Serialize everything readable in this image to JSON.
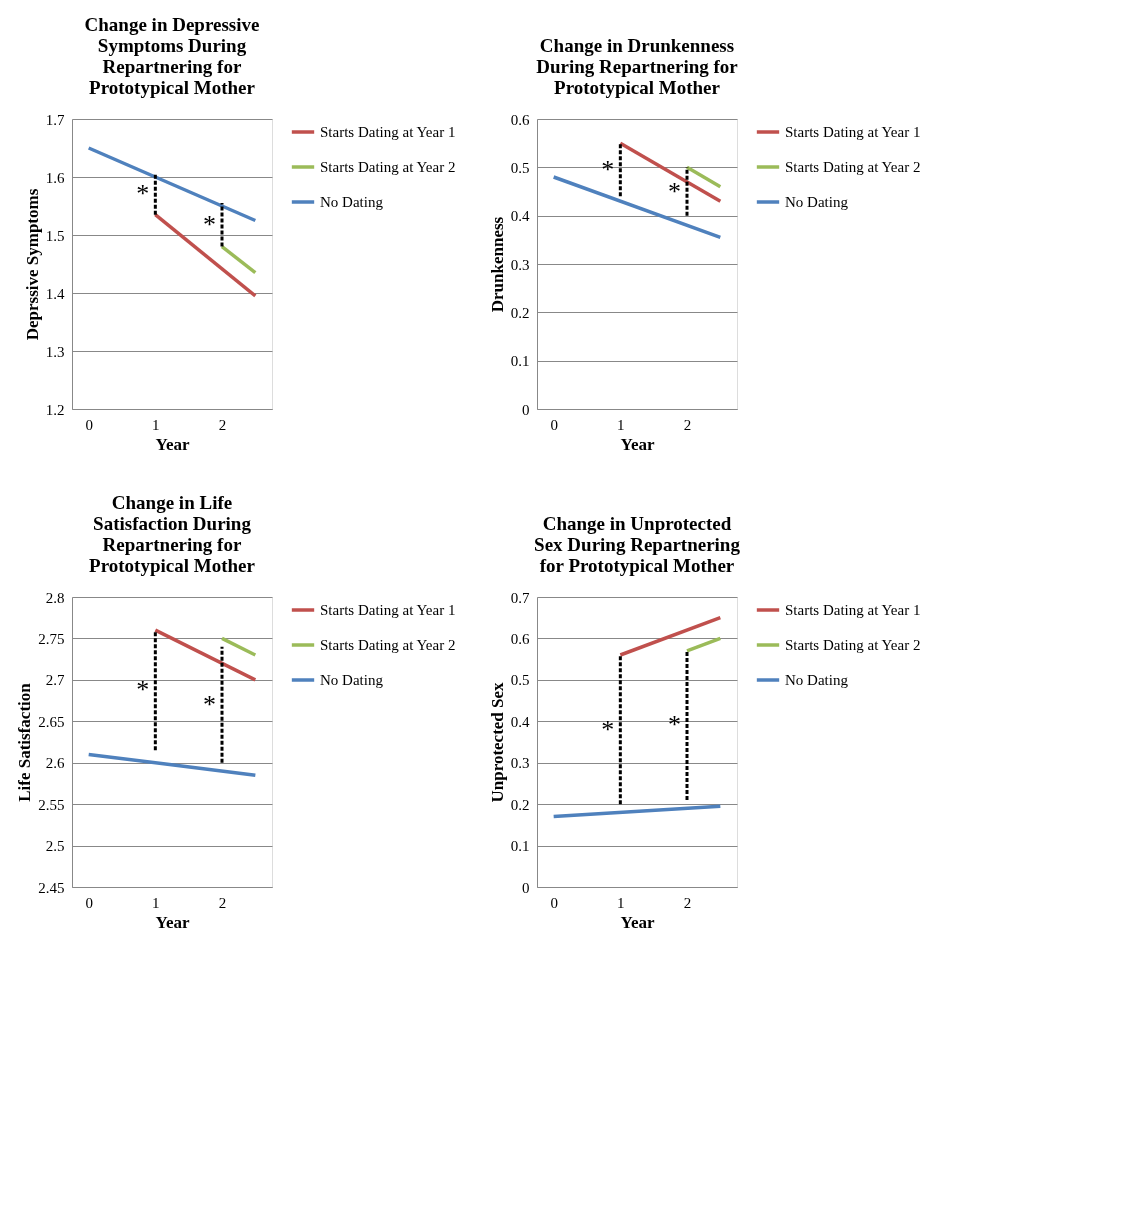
{
  "chart_data": [
    {
      "type": "line",
      "title": "Change in Depressive Symptoms During Repartnering for Prototypical Mother",
      "xlabel": "Year",
      "ylabel": "Deprssive Symptoms",
      "xlim": [
        -0.25,
        2.75
      ],
      "xticks": [
        0,
        1,
        2
      ],
      "ylim": [
        1.2,
        1.7
      ],
      "yticks": [
        1.2,
        1.3,
        1.4,
        1.5,
        1.6,
        1.7
      ],
      "grid": "y",
      "legend": "right",
      "marker": "none",
      "series": [
        {
          "name": "Starts Dating at Year 1",
          "color": "#c0504d",
          "x": [
            1,
            2.5
          ],
          "values": [
            1.535,
            1.395
          ]
        },
        {
          "name": "Starts Dating at Year 2",
          "color": "#9bbb59",
          "x": [
            2,
            2.5
          ],
          "values": [
            1.48,
            1.435
          ]
        },
        {
          "name": "No Dating",
          "color": "#4f81bd",
          "x": [
            0,
            2.5
          ],
          "values": [
            1.65,
            1.525
          ]
        },
        {
          "color": "#000000",
          "line_style": "dashed",
          "x": [
            1,
            1
          ],
          "values": [
            1.535,
            1.605
          ]
        },
        {
          "color": "#000000",
          "line_style": "dashed",
          "x": [
            2,
            2
          ],
          "values": [
            1.48,
            1.555
          ]
        }
      ],
      "annotations": [
        "*",
        "*"
      ]
    },
    {
      "type": "line",
      "title": "Change in Drunkenness During Repartnering for Prototypical Mother",
      "xlabel": "Year",
      "ylabel": "Drunkenness",
      "xlim": [
        -0.25,
        2.75
      ],
      "xticks": [
        0,
        1,
        2
      ],
      "ylim": [
        0,
        0.6
      ],
      "yticks": [
        0,
        0.1,
        0.2,
        0.3,
        0.4,
        0.5,
        0.6
      ],
      "grid": "y",
      "legend": "right",
      "marker": "none",
      "series": [
        {
          "name": "Starts Dating at Year 1",
          "color": "#c0504d",
          "x": [
            1,
            2.5
          ],
          "values": [
            0.55,
            0.43
          ]
        },
        {
          "name": "Starts Dating at Year 2",
          "color": "#9bbb59",
          "x": [
            2,
            2.5
          ],
          "values": [
            0.5,
            0.46
          ]
        },
        {
          "name": "No Dating",
          "color": "#4f81bd",
          "x": [
            0,
            2.5
          ],
          "values": [
            0.48,
            0.355
          ]
        },
        {
          "color": "#000000",
          "line_style": "dashed",
          "x": [
            1,
            1
          ],
          "values": [
            0.44,
            0.55
          ]
        },
        {
          "color": "#000000",
          "line_style": "dashed",
          "x": [
            2,
            2
          ],
          "values": [
            0.4,
            0.5
          ]
        }
      ],
      "annotations": [
        "*",
        "*"
      ]
    },
    {
      "type": "line",
      "title": "Change in Life Satisfaction During Repartnering for Prototypical Mother",
      "xlabel": "Year",
      "ylabel": "Life Satisfaction",
      "xlim": [
        -0.25,
        2.75
      ],
      "xticks": [
        0,
        1,
        2
      ],
      "ylim": [
        2.45,
        2.8
      ],
      "yticks": [
        2.45,
        2.5,
        2.55,
        2.6,
        2.65,
        2.7,
        2.75,
        2.8
      ],
      "grid": "y",
      "legend": "right",
      "marker": "none",
      "series": [
        {
          "name": "Starts Dating at Year 1",
          "color": "#c0504d",
          "x": [
            1,
            2.5
          ],
          "values": [
            2.76,
            2.7
          ]
        },
        {
          "name": "Starts Dating at Year 2",
          "color": "#9bbb59",
          "x": [
            2,
            2.5
          ],
          "values": [
            2.75,
            2.73
          ]
        },
        {
          "name": "No Dating",
          "color": "#4f81bd",
          "x": [
            0,
            2.5
          ],
          "values": [
            2.61,
            2.585
          ]
        },
        {
          "color": "#000000",
          "line_style": "dashed",
          "x": [
            1,
            1
          ],
          "values": [
            2.615,
            2.76
          ]
        },
        {
          "color": "#000000",
          "line_style": "dashed",
          "x": [
            2,
            2
          ],
          "values": [
            2.6,
            2.74
          ]
        }
      ],
      "annotations": [
        "*",
        "*"
      ]
    },
    {
      "type": "line",
      "title": "Change in Unprotected Sex During Repartnering for Prototypical Mother",
      "xlabel": "Year",
      "ylabel": "Unprotected Sex",
      "xlim": [
        -0.25,
        2.75
      ],
      "xticks": [
        0,
        1,
        2
      ],
      "ylim": [
        0,
        0.7
      ],
      "yticks": [
        0,
        0.1,
        0.2,
        0.3,
        0.4,
        0.5,
        0.6,
        0.7
      ],
      "grid": "y",
      "legend": "right",
      "marker": "none",
      "series": [
        {
          "name": "Starts Dating at Year 1",
          "color": "#c0504d",
          "x": [
            1,
            2.5
          ],
          "values": [
            0.56,
            0.65
          ]
        },
        {
          "name": "Starts Dating at Year 2",
          "color": "#9bbb59",
          "x": [
            2,
            2.5
          ],
          "values": [
            0.57,
            0.6
          ]
        },
        {
          "name": "No Dating",
          "color": "#4f81bd",
          "x": [
            0,
            2.5
          ],
          "values": [
            0.17,
            0.195
          ]
        },
        {
          "color": "#000000",
          "line_style": "dashed",
          "x": [
            1,
            1
          ],
          "values": [
            0.2,
            0.56
          ]
        },
        {
          "color": "#000000",
          "line_style": "dashed",
          "x": [
            2,
            2
          ],
          "values": [
            0.21,
            0.57
          ]
        }
      ],
      "annotations": [
        "*",
        "*"
      ]
    }
  ]
}
